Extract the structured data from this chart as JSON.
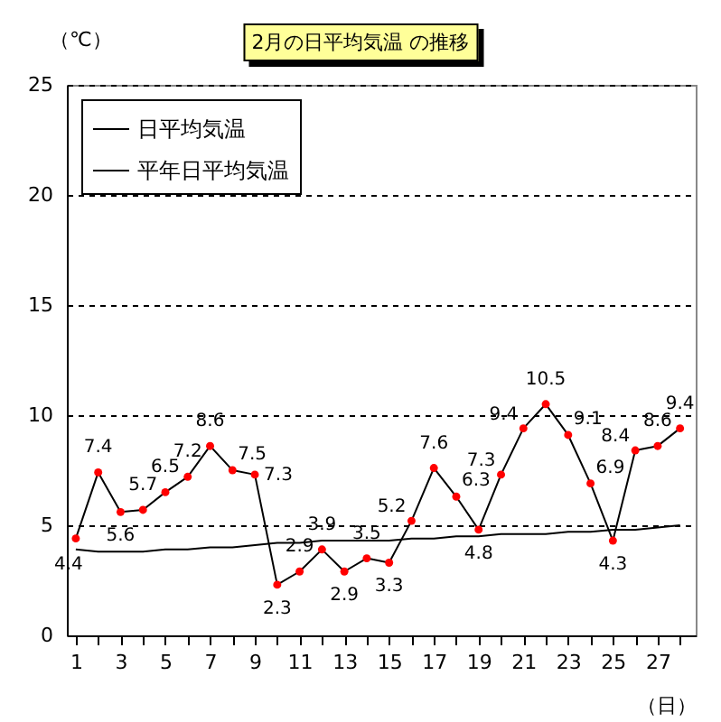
{
  "chart_data": {
    "type": "line",
    "title": "2月の日平均気温 の推移",
    "xlabel": "（日）",
    "ylabel": "（℃）",
    "x": [
      1,
      2,
      3,
      4,
      5,
      6,
      7,
      8,
      9,
      10,
      11,
      12,
      13,
      14,
      15,
      16,
      17,
      18,
      19,
      20,
      21,
      22,
      23,
      24,
      25,
      26,
      27,
      28
    ],
    "series": [
      {
        "name": "日平均気温",
        "color": "#000000",
        "marker": "circle",
        "data_labels": true,
        "values": [
          4.4,
          7.4,
          5.6,
          5.7,
          6.5,
          7.2,
          8.6,
          7.5,
          7.3,
          2.3,
          2.9,
          3.9,
          2.9,
          3.5,
          3.3,
          5.2,
          7.6,
          6.3,
          4.8,
          7.3,
          9.4,
          10.5,
          9.1,
          6.9,
          4.3,
          8.4,
          8.6,
          9.4
        ]
      },
      {
        "name": "平年日平均気温",
        "color": "#000000",
        "marker": "none",
        "values": [
          3.9,
          3.8,
          3.8,
          3.8,
          3.9,
          3.9,
          4.0,
          4.0,
          4.1,
          4.2,
          4.2,
          4.3,
          4.3,
          4.3,
          4.3,
          4.4,
          4.4,
          4.5,
          4.5,
          4.6,
          4.6,
          4.6,
          4.7,
          4.7,
          4.8,
          4.8,
          4.9,
          5.0
        ]
      }
    ],
    "xlim": [
      0.6,
      28.7
    ],
    "xticks": [
      1,
      {
        "value": 2,
        "label": null
      },
      3,
      {
        "value": 4,
        "label": null
      },
      5,
      {
        "value": 6,
        "label": null
      },
      7,
      {
        "value": 8,
        "label": null
      },
      9,
      {
        "value": 10,
        "label": null
      },
      11,
      {
        "value": 12,
        "label": null
      },
      13,
      {
        "value": 14,
        "label": null
      },
      15,
      {
        "value": 16,
        "label": null
      },
      17,
      {
        "value": 18,
        "label": null
      },
      19,
      {
        "value": 20,
        "label": null
      },
      21,
      {
        "value": 22,
        "label": null
      },
      23,
      {
        "value": 24,
        "label": null
      },
      25,
      {
        "value": 26,
        "label": null
      },
      27,
      {
        "value": 28,
        "label": null
      }
    ],
    "ylim": [
      0,
      25
    ],
    "yticks": [
      0,
      5,
      10,
      15,
      20,
      25
    ],
    "grid": "y",
    "legend": "top left"
  }
}
